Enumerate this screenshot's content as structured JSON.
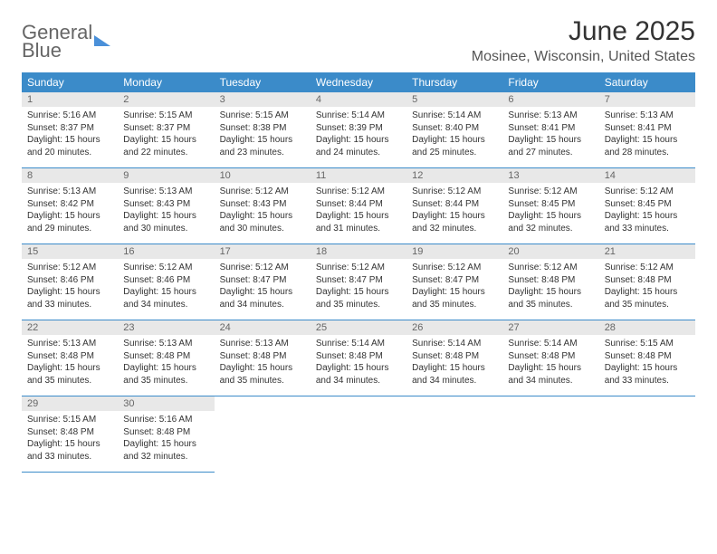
{
  "logo": {
    "line1": "General",
    "line2": "Blue"
  },
  "title": "June 2025",
  "location": "Mosinee, Wisconsin, United States",
  "colors": {
    "header_bg": "#3b8bc9",
    "header_fg": "#ffffff",
    "daynum_bg": "#e8e8e8",
    "border": "#3b8bc9",
    "logo_blue": "#4a90d9",
    "text": "#333333"
  },
  "weekdays": [
    "Sunday",
    "Monday",
    "Tuesday",
    "Wednesday",
    "Thursday",
    "Friday",
    "Saturday"
  ],
  "weeks": [
    [
      {
        "n": "1",
        "r": "5:16 AM",
        "s": "8:37 PM",
        "d": "15 hours and 20 minutes."
      },
      {
        "n": "2",
        "r": "5:15 AM",
        "s": "8:37 PM",
        "d": "15 hours and 22 minutes."
      },
      {
        "n": "3",
        "r": "5:15 AM",
        "s": "8:38 PM",
        "d": "15 hours and 23 minutes."
      },
      {
        "n": "4",
        "r": "5:14 AM",
        "s": "8:39 PM",
        "d": "15 hours and 24 minutes."
      },
      {
        "n": "5",
        "r": "5:14 AM",
        "s": "8:40 PM",
        "d": "15 hours and 25 minutes."
      },
      {
        "n": "6",
        "r": "5:13 AM",
        "s": "8:41 PM",
        "d": "15 hours and 27 minutes."
      },
      {
        "n": "7",
        "r": "5:13 AM",
        "s": "8:41 PM",
        "d": "15 hours and 28 minutes."
      }
    ],
    [
      {
        "n": "8",
        "r": "5:13 AM",
        "s": "8:42 PM",
        "d": "15 hours and 29 minutes."
      },
      {
        "n": "9",
        "r": "5:13 AM",
        "s": "8:43 PM",
        "d": "15 hours and 30 minutes."
      },
      {
        "n": "10",
        "r": "5:12 AM",
        "s": "8:43 PM",
        "d": "15 hours and 30 minutes."
      },
      {
        "n": "11",
        "r": "5:12 AM",
        "s": "8:44 PM",
        "d": "15 hours and 31 minutes."
      },
      {
        "n": "12",
        "r": "5:12 AM",
        "s": "8:44 PM",
        "d": "15 hours and 32 minutes."
      },
      {
        "n": "13",
        "r": "5:12 AM",
        "s": "8:45 PM",
        "d": "15 hours and 32 minutes."
      },
      {
        "n": "14",
        "r": "5:12 AM",
        "s": "8:45 PM",
        "d": "15 hours and 33 minutes."
      }
    ],
    [
      {
        "n": "15",
        "r": "5:12 AM",
        "s": "8:46 PM",
        "d": "15 hours and 33 minutes."
      },
      {
        "n": "16",
        "r": "5:12 AM",
        "s": "8:46 PM",
        "d": "15 hours and 34 minutes."
      },
      {
        "n": "17",
        "r": "5:12 AM",
        "s": "8:47 PM",
        "d": "15 hours and 34 minutes."
      },
      {
        "n": "18",
        "r": "5:12 AM",
        "s": "8:47 PM",
        "d": "15 hours and 35 minutes."
      },
      {
        "n": "19",
        "r": "5:12 AM",
        "s": "8:47 PM",
        "d": "15 hours and 35 minutes."
      },
      {
        "n": "20",
        "r": "5:12 AM",
        "s": "8:48 PM",
        "d": "15 hours and 35 minutes."
      },
      {
        "n": "21",
        "r": "5:12 AM",
        "s": "8:48 PM",
        "d": "15 hours and 35 minutes."
      }
    ],
    [
      {
        "n": "22",
        "r": "5:13 AM",
        "s": "8:48 PM",
        "d": "15 hours and 35 minutes."
      },
      {
        "n": "23",
        "r": "5:13 AM",
        "s": "8:48 PM",
        "d": "15 hours and 35 minutes."
      },
      {
        "n": "24",
        "r": "5:13 AM",
        "s": "8:48 PM",
        "d": "15 hours and 35 minutes."
      },
      {
        "n": "25",
        "r": "5:14 AM",
        "s": "8:48 PM",
        "d": "15 hours and 34 minutes."
      },
      {
        "n": "26",
        "r": "5:14 AM",
        "s": "8:48 PM",
        "d": "15 hours and 34 minutes."
      },
      {
        "n": "27",
        "r": "5:14 AM",
        "s": "8:48 PM",
        "d": "15 hours and 34 minutes."
      },
      {
        "n": "28",
        "r": "5:15 AM",
        "s": "8:48 PM",
        "d": "15 hours and 33 minutes."
      }
    ],
    [
      {
        "n": "29",
        "r": "5:15 AM",
        "s": "8:48 PM",
        "d": "15 hours and 33 minutes."
      },
      {
        "n": "30",
        "r": "5:16 AM",
        "s": "8:48 PM",
        "d": "15 hours and 32 minutes."
      },
      null,
      null,
      null,
      null,
      null
    ]
  ],
  "labels": {
    "sunrise": "Sunrise:",
    "sunset": "Sunset:",
    "daylight": "Daylight:"
  }
}
